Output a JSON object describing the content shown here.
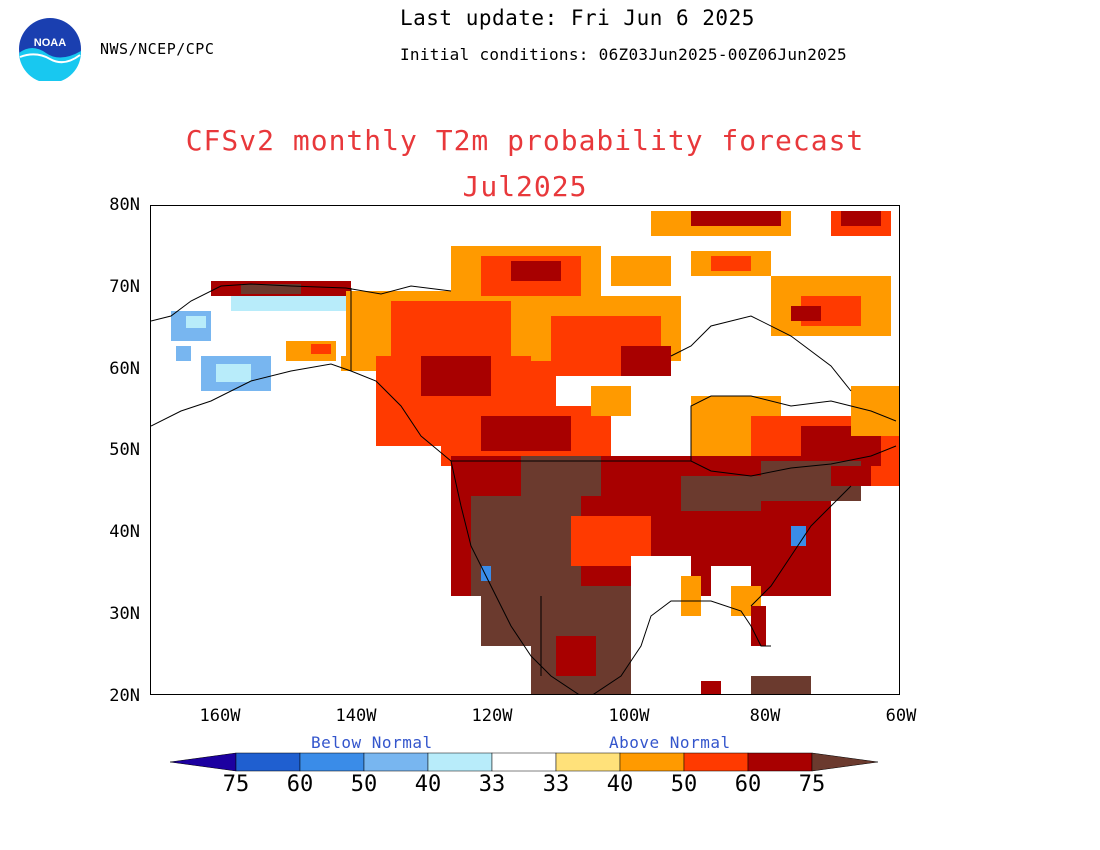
{
  "header": {
    "agency": "NWS/NCEP/CPC",
    "last_update": "Last update: Fri Jun 6 2025",
    "initial_conditions": "Initial conditions: 06Z03Jun2025-00Z06Jun2025"
  },
  "logo": {
    "text": "NOAA",
    "icon": "noaa-logo-icon"
  },
  "map": {
    "title": "CFSv2 monthly T2m probability forecast",
    "subtitle": "Jul2025",
    "lat_labels": [
      "80N",
      "70N",
      "60N",
      "50N",
      "40N",
      "30N",
      "20N"
    ],
    "lon_labels": [
      "160W",
      "140W",
      "120W",
      "100W",
      "80W",
      "60W"
    ],
    "lat_range": [
      20,
      80
    ],
    "lon_range": [
      -170,
      -60
    ]
  },
  "legend": {
    "below_label": "Below Normal",
    "above_label": "Above Normal",
    "values": [
      "75",
      "60",
      "50",
      "40",
      "33",
      "33",
      "40",
      "50",
      "60",
      "75"
    ],
    "colors": {
      "below_75": "#1c00a0",
      "below_60": "#1f5fd0",
      "below_50": "#3a8ce8",
      "below_40": "#78b6f0",
      "below_33": "#b8ecfa",
      "near_normal": "#ffffff",
      "above_33": "#ffe17a",
      "above_40": "#ff9a00",
      "above_50": "#ff3a00",
      "above_60": "#a80000",
      "above_75": "#6b3a2e"
    }
  }
}
